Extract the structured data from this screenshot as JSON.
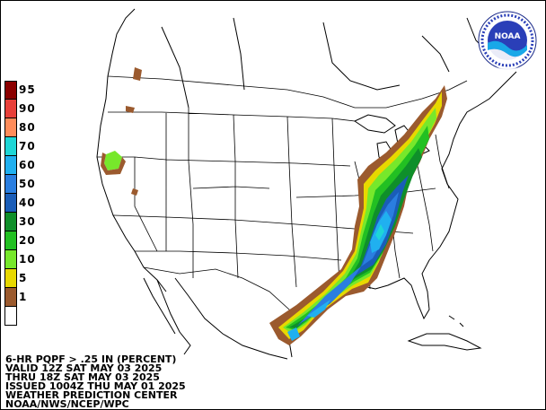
{
  "legend": {
    "labels": [
      "95",
      "90",
      "80",
      "70",
      "60",
      "50",
      "40",
      "30",
      "20",
      "10",
      "5",
      "1",
      ""
    ],
    "colors": [
      "#8b0000",
      "#e8403a",
      "#ff8c5a",
      "#1ed6d6",
      "#20b0f0",
      "#2a7ee0",
      "#1a5db8",
      "#0f8f2a",
      "#22c022",
      "#77e82b",
      "#e8d800",
      "#9b5a2e",
      "#ffffff"
    ]
  },
  "info": {
    "line1": "6-HR PQPF > .25 IN (PERCENT)",
    "line2": "VALID 12Z SAT MAY 03 2025",
    "line3": "THRU 18Z SAT MAY 03 2025",
    "line4": "ISSUED 1004Z THU MAY 01 2025",
    "line5": "WEATHER PREDICTION CENTER",
    "line6": "NOAA/NWS/NCEP/WPC"
  },
  "logo": {
    "text": "NOAA",
    "ring_text": "NATIONAL OCEANIC AND ATMOSPHERIC ADMINISTRATION"
  }
}
